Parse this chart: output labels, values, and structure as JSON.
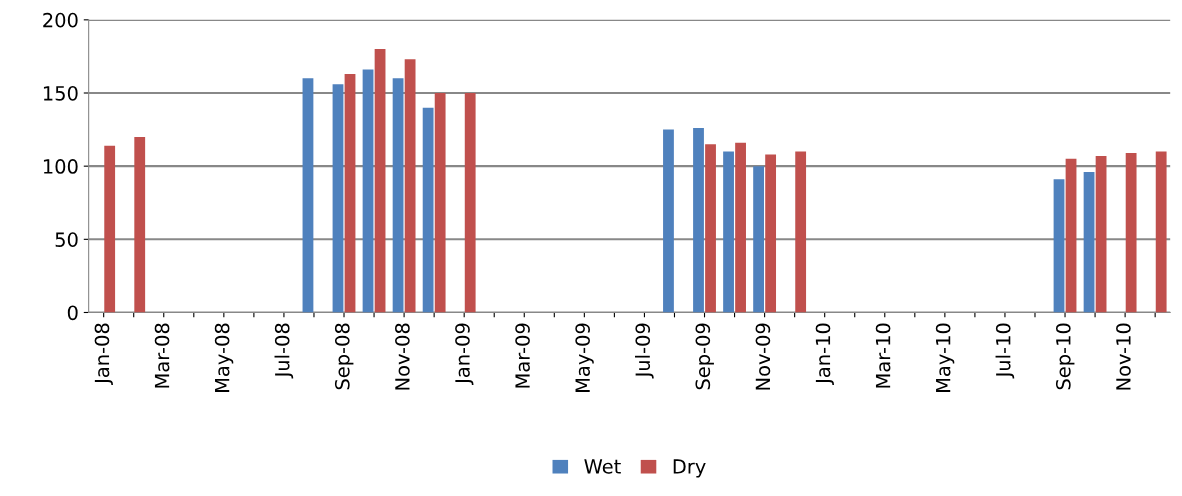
{
  "chart_data": {
    "type": "bar",
    "categories": [
      "Jan-08",
      null,
      "Mar-08",
      null,
      "May-08",
      null,
      "Jul-08",
      null,
      "Sep-08",
      null,
      "Nov-08",
      null,
      "Jan-09",
      null,
      "Mar-09",
      null,
      "May-09",
      null,
      "Jul-09",
      null,
      "Sep-09",
      null,
      "Nov-09",
      null,
      "Jan-10",
      null,
      "Mar-10",
      null,
      "May-10",
      null,
      "Jul-10",
      null,
      "Sep-10",
      null,
      "Nov-10",
      null
    ],
    "series": [
      {
        "name": "Wet",
        "color": "#4f81bd",
        "values": [
          0,
          0,
          0,
          0,
          0,
          0,
          0,
          160,
          156,
          166,
          160,
          140,
          0,
          0,
          0,
          0,
          0,
          0,
          0,
          125,
          126,
          110,
          100,
          0,
          0,
          0,
          0,
          0,
          0,
          0,
          0,
          0,
          91,
          96,
          0,
          0
        ]
      },
      {
        "name": "Dry",
        "color": "#c0504d",
        "values": [
          114,
          120,
          0,
          0,
          0,
          0,
          0,
          0,
          163,
          180,
          173,
          150,
          150,
          0,
          0,
          0,
          0,
          0,
          0,
          0,
          115,
          116,
          108,
          110,
          0,
          0,
          0,
          0,
          0,
          0,
          0,
          0,
          105,
          107,
          109,
          110
        ]
      }
    ],
    "ylim": [
      0,
      200
    ],
    "yticks": [
      0,
      50,
      100,
      150,
      200
    ],
    "grid": "y",
    "legend": "bottom"
  }
}
